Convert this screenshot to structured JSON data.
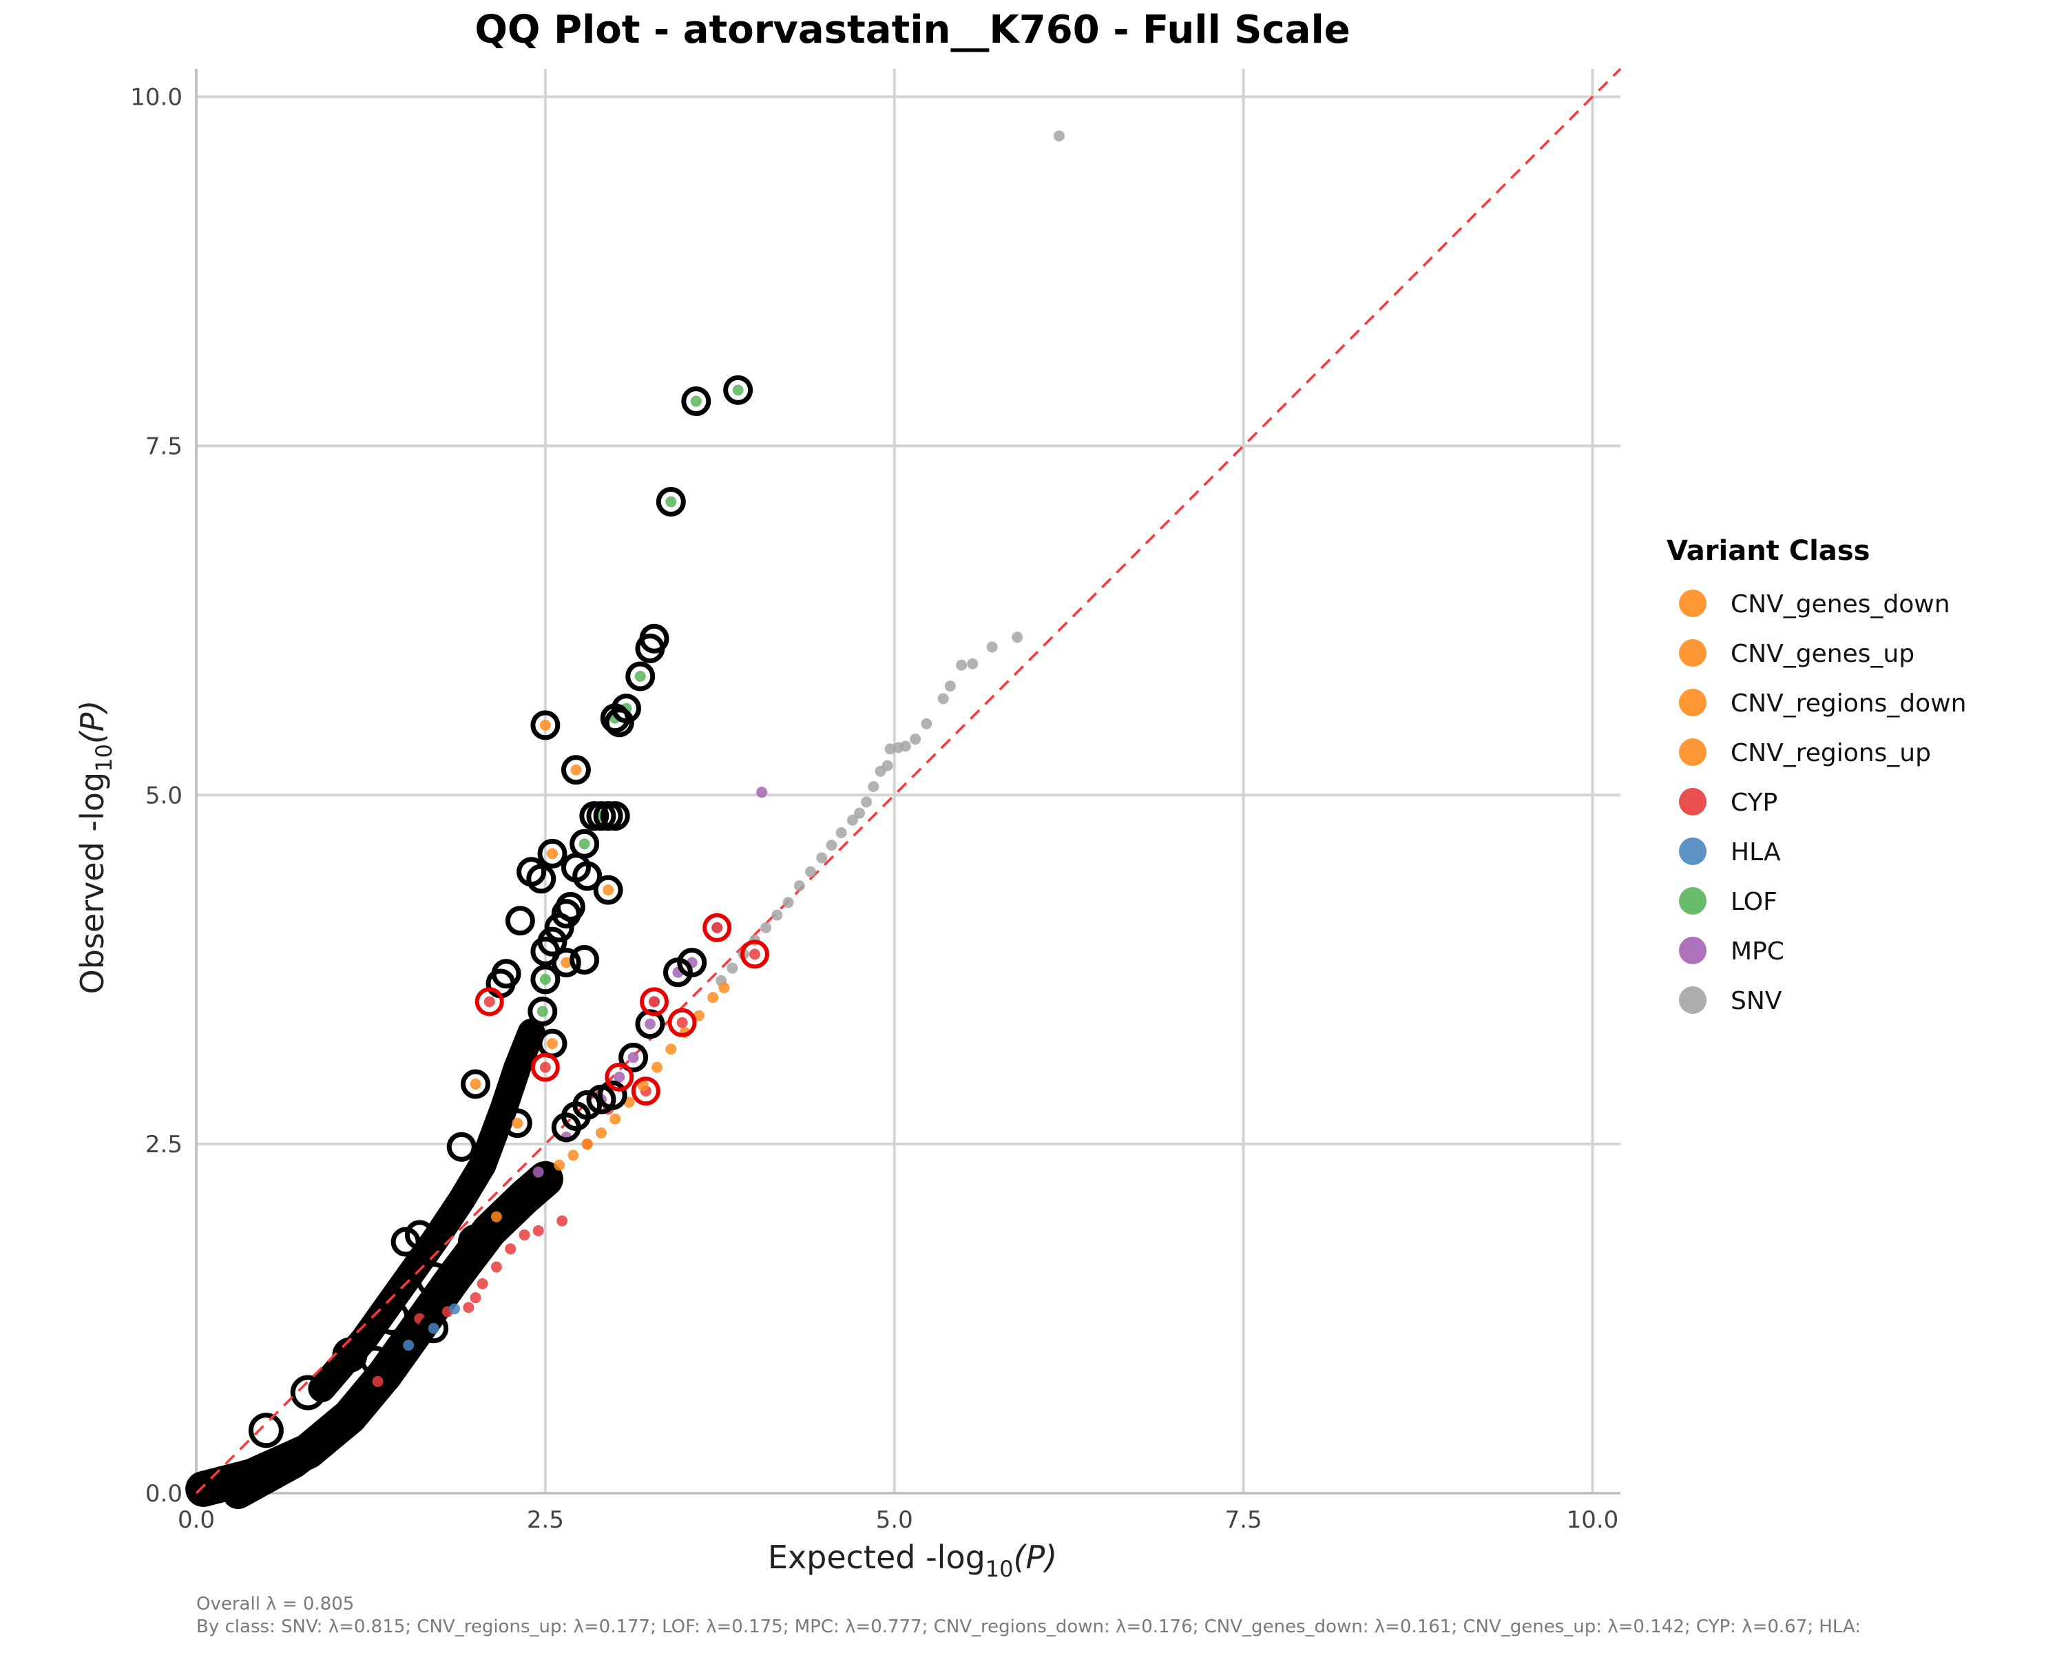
{
  "chart_data": {
    "type": "scatter",
    "title": "QQ Plot - atorvastatin__K760 - Full Scale",
    "xlabel": {
      "pre": "Expected -log",
      "sub": "10",
      "post": "(P)"
    },
    "ylabel": {
      "pre": "Observed -log",
      "sub": "10",
      "post": "(P)"
    },
    "xlim": [
      0,
      10.2
    ],
    "ylim": [
      0,
      10.2
    ],
    "xticks": [
      0,
      2.5,
      5,
      7.5,
      10
    ],
    "yticks": [
      0,
      2.5,
      5,
      7.5,
      10
    ],
    "tick_labels": [
      "0.0",
      "2.5",
      "5.0",
      "7.5",
      "10.0"
    ],
    "grid": true,
    "reference_line": {
      "style": "dashed",
      "color": "#f03c3c",
      "slope": 1
    },
    "legend": {
      "title": "Variant Class",
      "placement": "right",
      "items": [
        {
          "label": "CNV_genes_down",
          "color": "#ff8c1e"
        },
        {
          "label": "CNV_genes_up",
          "color": "#ff8c1e"
        },
        {
          "label": "CNV_regions_down",
          "color": "#ff8c1e"
        },
        {
          "label": "CNV_regions_up",
          "color": "#ff8c1e"
        },
        {
          "label": "CYP",
          "color": "#e83c3c"
        },
        {
          "label": "HLA",
          "color": "#4a86c0"
        },
        {
          "label": "LOF",
          "color": "#58b458"
        },
        {
          "label": "MPC",
          "color": "#a463b4"
        },
        {
          "label": "SNV",
          "color": "#a4a4a4"
        }
      ]
    },
    "footnote": [
      "Overall λ = 0.805",
      "By class: SNV: λ=0.815; CNV_regions_up: λ=0.177; LOF: λ=0.175; MPC: λ=0.777; CNV_regions_down: λ=0.176; CNV_genes_down: λ=0.161; CNV_genes_up: λ=0.142; CYP: λ=0.67; HLA:"
    ],
    "series": [
      {
        "name": "SNV",
        "color": "#a4a4a4",
        "points": [
          [
            6.18,
            9.72
          ],
          [
            5.88,
            6.13
          ],
          [
            5.7,
            6.06
          ],
          [
            5.56,
            5.94
          ],
          [
            5.48,
            5.93
          ],
          [
            5.4,
            5.78
          ],
          [
            5.35,
            5.69
          ],
          [
            5.23,
            5.51
          ],
          [
            5.15,
            5.4
          ],
          [
            5.08,
            5.35
          ],
          [
            5.03,
            5.34
          ],
          [
            4.97,
            5.33
          ],
          [
            4.95,
            5.21
          ],
          [
            4.9,
            5.17
          ],
          [
            4.85,
            5.06
          ],
          [
            4.8,
            4.95
          ],
          [
            4.75,
            4.87
          ],
          [
            4.7,
            4.82
          ],
          [
            4.62,
            4.73
          ],
          [
            4.55,
            4.64
          ],
          [
            4.48,
            4.55
          ],
          [
            4.4,
            4.45
          ],
          [
            4.32,
            4.35
          ],
          [
            4.24,
            4.23
          ],
          [
            4.16,
            4.14
          ],
          [
            4.08,
            4.05
          ],
          [
            4.0,
            3.96
          ],
          [
            3.92,
            3.86
          ],
          [
            3.84,
            3.76
          ],
          [
            3.76,
            3.67
          ]
        ]
      },
      {
        "name": "MPC",
        "color": "#a463b4",
        "points": [
          [
            4.05,
            5.02
          ],
          [
            3.73,
            4.05
          ],
          [
            3.55,
            3.8
          ],
          [
            3.45,
            3.73
          ],
          [
            3.28,
            3.52
          ],
          [
            3.25,
            3.36
          ],
          [
            3.13,
            3.12
          ],
          [
            3.03,
            2.98
          ],
          [
            2.9,
            2.82
          ],
          [
            2.65,
            2.55
          ],
          [
            2.45,
            2.3
          ]
        ]
      },
      {
        "name": "CYP",
        "color": "#e83c3c",
        "points": [
          [
            4.0,
            3.86
          ],
          [
            3.73,
            4.05
          ],
          [
            3.48,
            3.37
          ],
          [
            3.28,
            3.52
          ],
          [
            3.22,
            2.88
          ],
          [
            2.95,
            2.75
          ],
          [
            2.62,
            1.95
          ],
          [
            2.45,
            1.88
          ],
          [
            2.35,
            1.85
          ],
          [
            2.25,
            1.75
          ],
          [
            2.15,
            1.62
          ],
          [
            2.05,
            1.5
          ],
          [
            2.0,
            1.4
          ],
          [
            1.95,
            1.33
          ],
          [
            1.8,
            1.3
          ],
          [
            1.6,
            1.25
          ],
          [
            2.1,
            3.52
          ],
          [
            2.5,
            3.05
          ],
          [
            2.8,
            2.5
          ],
          [
            1.3,
            0.8
          ]
        ]
      },
      {
        "name": "LOF",
        "color": "#58b458",
        "points": [
          [
            3.88,
            7.9
          ],
          [
            3.58,
            7.82
          ],
          [
            3.4,
            7.1
          ],
          [
            3.18,
            5.85
          ],
          [
            3.08,
            5.62
          ],
          [
            3.0,
            5.55
          ],
          [
            2.9,
            4.85
          ],
          [
            2.78,
            4.65
          ],
          [
            2.5,
            3.68
          ],
          [
            2.48,
            3.45
          ]
        ]
      },
      {
        "name": "CNV",
        "color": "#ff8c1e",
        "points": [
          [
            3.78,
            3.62
          ],
          [
            3.7,
            3.55
          ],
          [
            3.6,
            3.42
          ],
          [
            3.5,
            3.3
          ],
          [
            3.4,
            3.18
          ],
          [
            3.3,
            3.05
          ],
          [
            3.2,
            2.92
          ],
          [
            3.1,
            2.8
          ],
          [
            3.0,
            2.68
          ],
          [
            2.9,
            2.58
          ],
          [
            2.8,
            2.5
          ],
          [
            2.7,
            2.42
          ],
          [
            2.6,
            2.35
          ],
          [
            2.5,
            5.5
          ],
          [
            2.55,
            4.58
          ],
          [
            2.72,
            5.18
          ],
          [
            2.95,
            4.32
          ],
          [
            2.65,
            3.8
          ],
          [
            2.55,
            3.22
          ],
          [
            2.3,
            2.65
          ],
          [
            2.0,
            2.93
          ],
          [
            2.15,
            1.98
          ]
        ]
      },
      {
        "name": "HLA",
        "color": "#4a86c0",
        "points": [
          [
            1.7,
            1.18
          ],
          [
            1.52,
            1.06
          ],
          [
            1.85,
            1.32
          ]
        ]
      }
    ],
    "highlighted": [
      [
        3.88,
        7.9
      ],
      [
        3.58,
        7.82
      ],
      [
        3.4,
        7.1
      ],
      [
        3.28,
        6.12
      ],
      [
        3.25,
        6.05
      ],
      [
        3.18,
        5.85
      ],
      [
        3.08,
        5.62
      ],
      [
        3.0,
        5.55
      ],
      [
        3.03,
        5.52
      ],
      [
        2.5,
        5.5
      ],
      [
        2.72,
        5.18
      ],
      [
        2.85,
        4.85
      ],
      [
        2.9,
        4.85
      ],
      [
        2.95,
        4.85
      ],
      [
        3.0,
        4.85
      ],
      [
        2.78,
        4.65
      ],
      [
        2.55,
        4.58
      ],
      [
        2.4,
        4.45
      ],
      [
        2.47,
        4.4
      ],
      [
        2.72,
        4.48
      ],
      [
        2.8,
        4.42
      ],
      [
        2.95,
        4.32
      ],
      [
        2.32,
        4.1
      ],
      [
        2.68,
        4.2
      ],
      [
        2.65,
        4.15
      ],
      [
        2.6,
        4.05
      ],
      [
        2.55,
        3.95
      ],
      [
        2.5,
        3.88
      ],
      [
        2.78,
        3.82
      ],
      [
        2.65,
        3.8
      ],
      [
        2.22,
        3.72
      ],
      [
        2.18,
        3.65
      ],
      [
        3.45,
        3.73
      ],
      [
        3.55,
        3.8
      ],
      [
        2.5,
        3.68
      ],
      [
        2.48,
        3.45
      ],
      [
        3.25,
        3.36
      ],
      [
        3.13,
        3.12
      ],
      [
        2.55,
        3.22
      ],
      [
        2.0,
        2.93
      ],
      [
        2.65,
        2.62
      ],
      [
        2.72,
        2.7
      ],
      [
        2.8,
        2.78
      ],
      [
        2.9,
        2.82
      ],
      [
        2.98,
        2.85
      ],
      [
        2.3,
        2.65
      ],
      [
        1.9,
        2.48
      ],
      [
        1.5,
        1.8
      ],
      [
        1.6,
        1.85
      ],
      [
        1.7,
        1.18
      ],
      [
        1.52,
        1.06
      ],
      [
        1.28,
        0.95
      ]
    ],
    "highlighted_red": [
      [
        3.73,
        4.05
      ],
      [
        3.28,
        3.52
      ],
      [
        2.1,
        3.52
      ],
      [
        3.03,
        2.98
      ],
      [
        2.5,
        3.05
      ],
      [
        3.48,
        3.37
      ],
      [
        3.22,
        2.88
      ],
      [
        4.0,
        3.86
      ]
    ]
  }
}
